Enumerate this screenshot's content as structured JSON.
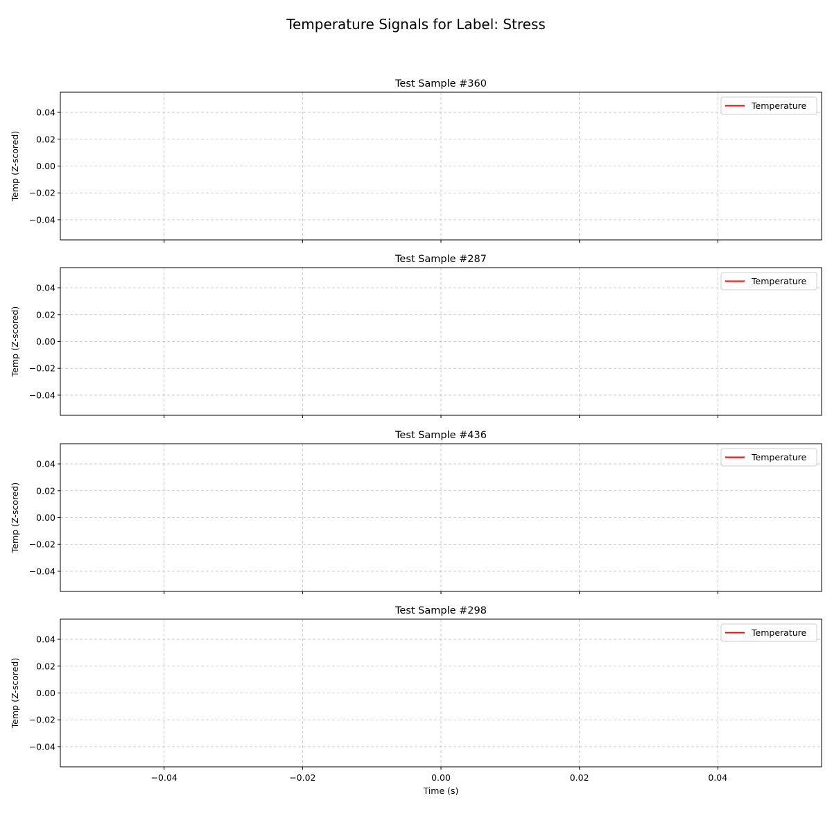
{
  "chart_data": {
    "type": "line",
    "title": "Temperature Signals for Label: Stress",
    "xlabel": "Time (s)",
    "xlim": [
      -0.055,
      0.055
    ],
    "x_ticks": [
      -0.04,
      -0.02,
      0.0,
      0.02,
      0.04
    ],
    "x_tick_labels": [
      "−0.04",
      "−0.02",
      "0.00",
      "0.02",
      "0.04"
    ],
    "grid": true,
    "legend_placement": "top-right",
    "line_color": "#ff0000",
    "panels": [
      {
        "title": "Test Sample #360",
        "ylabel": "Temp (Z-scored)",
        "ylim": [
          -0.055,
          0.055
        ],
        "y_ticks": [
          0.04,
          0.02,
          0.0,
          -0.02,
          -0.04
        ],
        "y_tick_labels": [
          "0.04",
          "0.02",
          "0.00",
          "−0.02",
          "−0.04"
        ],
        "series": [
          {
            "name": "Temperature",
            "x": [],
            "y": []
          }
        ]
      },
      {
        "title": "Test Sample #287",
        "ylabel": "Temp (Z-scored)",
        "ylim": [
          -0.055,
          0.055
        ],
        "y_ticks": [
          0.04,
          0.02,
          0.0,
          -0.02,
          -0.04
        ],
        "y_tick_labels": [
          "0.04",
          "0.02",
          "0.00",
          "−0.02",
          "−0.04"
        ],
        "series": [
          {
            "name": "Temperature",
            "x": [],
            "y": []
          }
        ]
      },
      {
        "title": "Test Sample #436",
        "ylabel": "Temp (Z-scored)",
        "ylim": [
          -0.055,
          0.055
        ],
        "y_ticks": [
          0.04,
          0.02,
          0.0,
          -0.02,
          -0.04
        ],
        "y_tick_labels": [
          "0.04",
          "0.02",
          "0.00",
          "−0.02",
          "−0.04"
        ],
        "series": [
          {
            "name": "Temperature",
            "x": [],
            "y": []
          }
        ]
      },
      {
        "title": "Test Sample #298",
        "ylabel": "Temp (Z-scored)",
        "ylim": [
          -0.055,
          0.055
        ],
        "y_ticks": [
          0.04,
          0.02,
          0.0,
          -0.02,
          -0.04
        ],
        "y_tick_labels": [
          "0.04",
          "0.02",
          "0.00",
          "−0.02",
          "−0.04"
        ],
        "series": [
          {
            "name": "Temperature",
            "x": [],
            "y": []
          }
        ]
      }
    ]
  }
}
